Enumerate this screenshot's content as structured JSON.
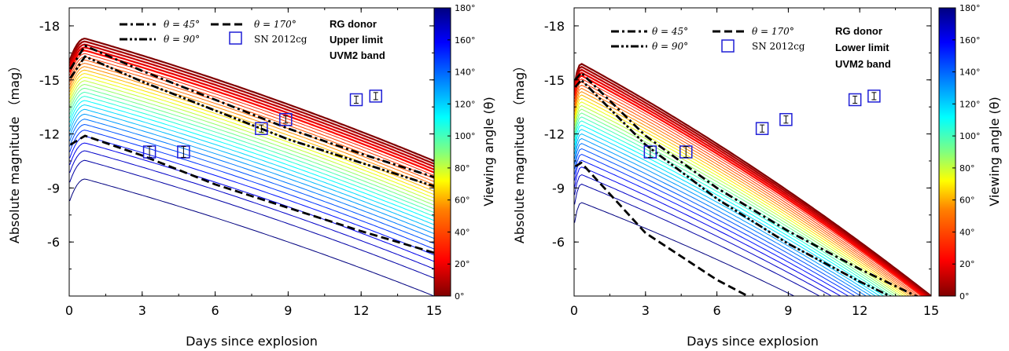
{
  "chart_data": [
    {
      "type": "line",
      "panel": "left",
      "xlabel": "Days since explosion",
      "ylabel": "Absolute magnitude （mag）",
      "xlim": [
        0,
        15
      ],
      "ylim": [
        -3,
        -19
      ],
      "y_inverted": true,
      "xticks": [
        0,
        3,
        6,
        9,
        12,
        15
      ],
      "yticks": [
        -18,
        -15,
        -12,
        -9,
        -6
      ],
      "xtick_labels": [
        "0",
        "3",
        "6",
        "9",
        "12",
        "15"
      ],
      "ytick_labels": [
        "-18",
        "-15",
        "-12",
        "-9",
        "-6"
      ],
      "annotations": [
        "RG donor",
        "Upper limit",
        "UVM2 band"
      ],
      "curve_family": {
        "peak_time": 0.65,
        "peak_mag_range": [
          -9.5,
          -17.3
        ],
        "end_mag_range": [
          -3.0,
          -10.5
        ],
        "n_curves": 30
      },
      "series": [
        {
          "name": "θ = 45°",
          "style": "dash-dot",
          "x": [
            0.05,
            0.65,
            3,
            6,
            9,
            12,
            15
          ],
          "y": [
            -15.6,
            -16.9,
            -15.5,
            -13.9,
            -12.3,
            -10.9,
            -9.6
          ]
        },
        {
          "name": "θ = 90°",
          "style": "dash-dot-dot",
          "x": [
            0.05,
            0.65,
            3,
            6,
            9,
            12,
            15
          ],
          "y": [
            -15.1,
            -16.3,
            -14.9,
            -13.3,
            -11.7,
            -10.4,
            -9.1
          ]
        },
        {
          "name": "θ = 170°",
          "style": "dashed",
          "x": [
            0.05,
            0.65,
            3,
            6,
            9,
            12,
            15
          ],
          "y": [
            -11.4,
            -11.9,
            -10.8,
            -9.2,
            -7.9,
            -6.6,
            -5.4
          ]
        }
      ],
      "observations": {
        "name": "SN 2012cg",
        "x": [
          3.3,
          4.7,
          7.9,
          8.9,
          11.8,
          12.6
        ],
        "y": [
          -11.0,
          -11.0,
          -12.3,
          -12.8,
          -13.9,
          -14.1
        ],
        "yerr": [
          0.3,
          0.3,
          0.2,
          0.2,
          0.2,
          0.2
        ]
      }
    },
    {
      "type": "line",
      "panel": "right",
      "xlabel": "Days since explosion",
      "ylabel": "Absolute magnitude （mag）",
      "xlim": [
        0,
        15
      ],
      "ylim": [
        -3,
        -19
      ],
      "y_inverted": true,
      "xticks": [
        0,
        3,
        6,
        9,
        12,
        15
      ],
      "yticks": [
        -18,
        -15,
        -12,
        -9,
        -6
      ],
      "xtick_labels": [
        "0",
        "3",
        "6",
        "9",
        "12",
        "15"
      ],
      "ytick_labels": [
        "-18",
        "-15",
        "-12",
        "-9",
        "-6"
      ],
      "annotations": [
        "RG donor",
        "Lower limit",
        "UVM2 band"
      ],
      "curve_family": {
        "peak_time": 0.3,
        "peak_mag_range": [
          -8.2,
          -15.9
        ],
        "end_mag_range": [
          1.0,
          -3.0
        ],
        "n_curves": 30
      },
      "series": [
        {
          "name": "θ = 45°",
          "style": "dash-dot",
          "x": [
            0.05,
            0.3,
            3,
            6,
            9,
            12,
            15
          ],
          "y": [
            -15.0,
            -15.4,
            -11.9,
            -9.0,
            -6.6,
            -4.5,
            -2.6
          ]
        },
        {
          "name": "θ = 90°",
          "style": "dash-dot-dot",
          "x": [
            0.05,
            0.3,
            3,
            6,
            9,
            12,
            15
          ],
          "y": [
            -14.6,
            -15.0,
            -11.4,
            -8.4,
            -5.9,
            -3.8,
            -1.9
          ]
        },
        {
          "name": "θ = 170°",
          "style": "dashed",
          "x": [
            0.05,
            0.3,
            3,
            6,
            7.3
          ],
          "y": [
            -10.2,
            -10.4,
            -6.5,
            -3.9,
            -3.0
          ]
        }
      ],
      "observations": {
        "name": "SN 2012cg",
        "x": [
          3.2,
          4.7,
          7.9,
          8.9,
          11.8,
          12.6
        ],
        "y": [
          -11.0,
          -11.0,
          -12.3,
          -12.8,
          -13.9,
          -14.1
        ],
        "yerr": [
          0.3,
          0.3,
          0.2,
          0.2,
          0.2,
          0.2
        ]
      }
    }
  ],
  "colorbar": {
    "label": "Viewing angle (θ)",
    "ticks": [
      "0°",
      "20°",
      "40°",
      "60°",
      "80°",
      "100°",
      "120°",
      "140°",
      "160°",
      "180°"
    ],
    "range": [
      0,
      180
    ],
    "colormap": "jet-reversed",
    "colors": [
      "#800000",
      "#ff0000",
      "#ff8000",
      "#ffff00",
      "#80ff80",
      "#00ffff",
      "#0080ff",
      "#0000ff",
      "#000080"
    ]
  },
  "legend": {
    "items": [
      {
        "label": "θ = 45°",
        "style": "dash-dot"
      },
      {
        "label": "θ = 90°",
        "style": "dash-dot-dot"
      },
      {
        "label": "θ = 170°",
        "style": "dashed"
      },
      {
        "label": "SN 2012cg",
        "style": "open-square"
      }
    ]
  },
  "colors": {
    "observation": "#1f1fd6",
    "frame": "#000000"
  }
}
